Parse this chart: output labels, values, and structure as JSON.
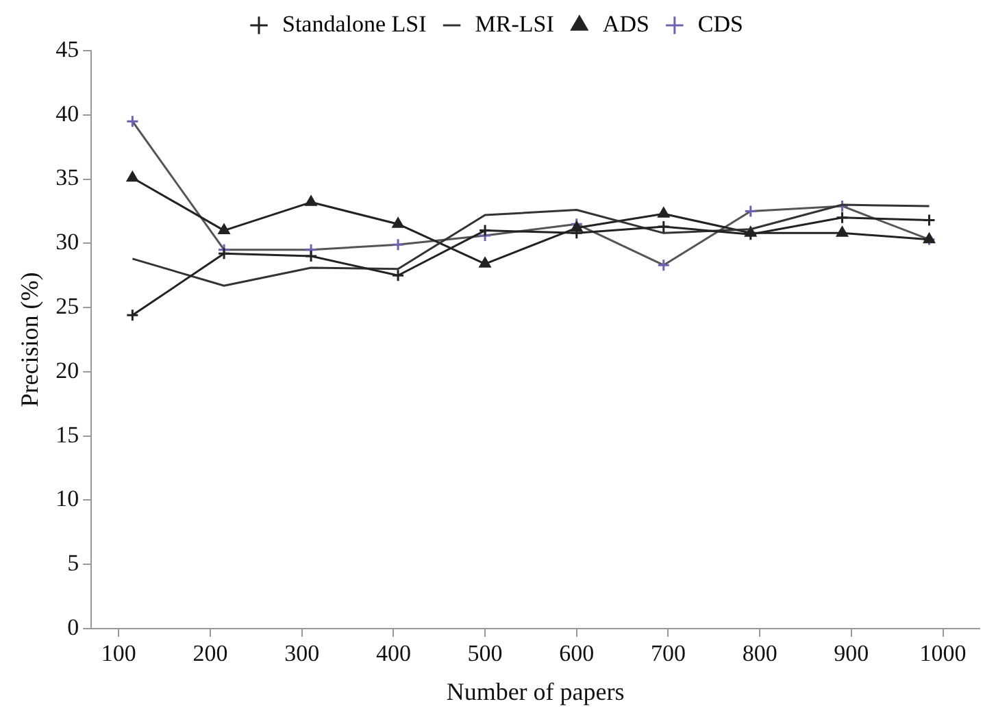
{
  "chart_data": {
    "type": "line",
    "xlabel": "Number of papers",
    "ylabel": "Precision (%)",
    "x": [
      115,
      215,
      310,
      405,
      500,
      600,
      695,
      790,
      890,
      985
    ],
    "xlim": [
      70,
      1040
    ],
    "xticks": [
      100,
      200,
      300,
      400,
      500,
      600,
      700,
      800,
      900,
      1000
    ],
    "ylim": [
      0,
      45
    ],
    "yticks": [
      0,
      5,
      10,
      15,
      20,
      25,
      30,
      35,
      40,
      45
    ],
    "grid": false,
    "legend": "top",
    "line_style": "solid",
    "series": [
      {
        "name": "Standalone LSI",
        "color": "#222222",
        "marker": "cross",
        "values": [
          24.4,
          29.2,
          29.0,
          27.5,
          31.0,
          30.8,
          31.3,
          30.7,
          32.0,
          31.8
        ]
      },
      {
        "name": "MR-LSI",
        "color": "#333333",
        "marker": "none",
        "values": [
          28.8,
          26.7,
          28.1,
          28.0,
          32.2,
          32.6,
          30.8,
          31.1,
          33.0,
          32.9
        ]
      },
      {
        "name": "ADS",
        "color": "#222222",
        "marker": "triangle",
        "values": [
          35.1,
          31.0,
          33.2,
          31.5,
          28.4,
          31.2,
          32.3,
          30.8,
          30.8,
          30.3
        ]
      },
      {
        "name": "CDS",
        "color": "#7060b0",
        "marker": "cross",
        "values": [
          39.5,
          29.5,
          29.5,
          29.9,
          30.6,
          31.5,
          28.3,
          32.5,
          32.9,
          30.3
        ]
      }
    ]
  }
}
